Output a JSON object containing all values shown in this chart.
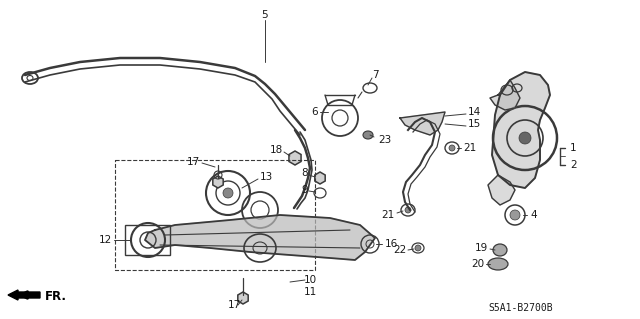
{
  "diagram_ref": "S5A1-B2700B",
  "bg_color": "#ffffff",
  "lc": "#3a3a3a",
  "tc": "#1a1a1a",
  "fig_width": 6.4,
  "fig_height": 3.19,
  "dpi": 100
}
